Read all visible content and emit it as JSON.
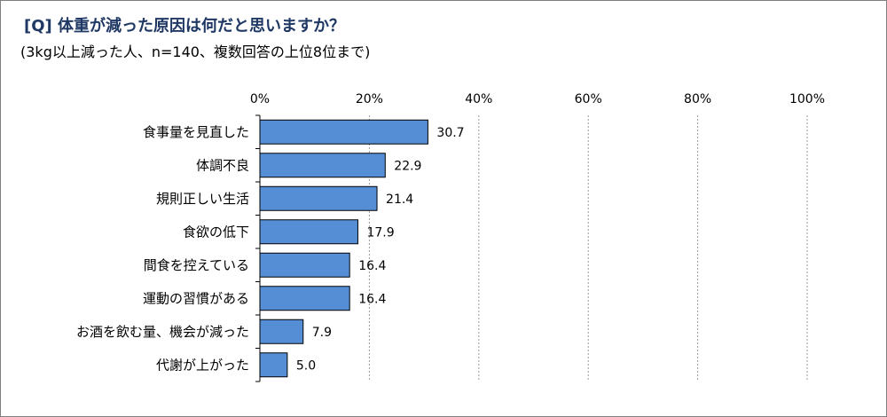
{
  "header": {
    "title": "[Q] 体重が減った原因は何だと思いますか？",
    "subtitle": "(3kg以上減った人、n=140、複数回答の上位8位まで)"
  },
  "chart_data": {
    "type": "bar",
    "orientation": "horizontal",
    "title": "[Q] 体重が減った原因は何だと思いますか？",
    "subtitle": "(3kg以上減った人、n=140、複数回答の上位8位まで)",
    "categories": [
      "食事量を見直した",
      "体調不良",
      "規則正しい生活",
      "食欲の低下",
      "間食を控えている",
      "運動の習慣がある",
      "お酒を飲む量、機会が減った",
      "代謝が上がった"
    ],
    "values": [
      30.7,
      22.9,
      21.4,
      17.9,
      16.4,
      16.4,
      7.9,
      5.0
    ],
    "value_labels": [
      "30.7",
      "22.9",
      "21.4",
      "17.9",
      "16.4",
      "16.4",
      "7.9",
      "5.0"
    ],
    "xlim": [
      0,
      100
    ],
    "ticks": [
      0,
      20,
      40,
      60,
      80,
      100
    ],
    "tick_labels": [
      "0%",
      "20%",
      "40%",
      "60%",
      "80%",
      "100%"
    ],
    "axis_position": "top",
    "grid": true,
    "colors": {
      "bar": "#558ed5",
      "bar_border": "#000000",
      "grid": "#999999"
    }
  }
}
